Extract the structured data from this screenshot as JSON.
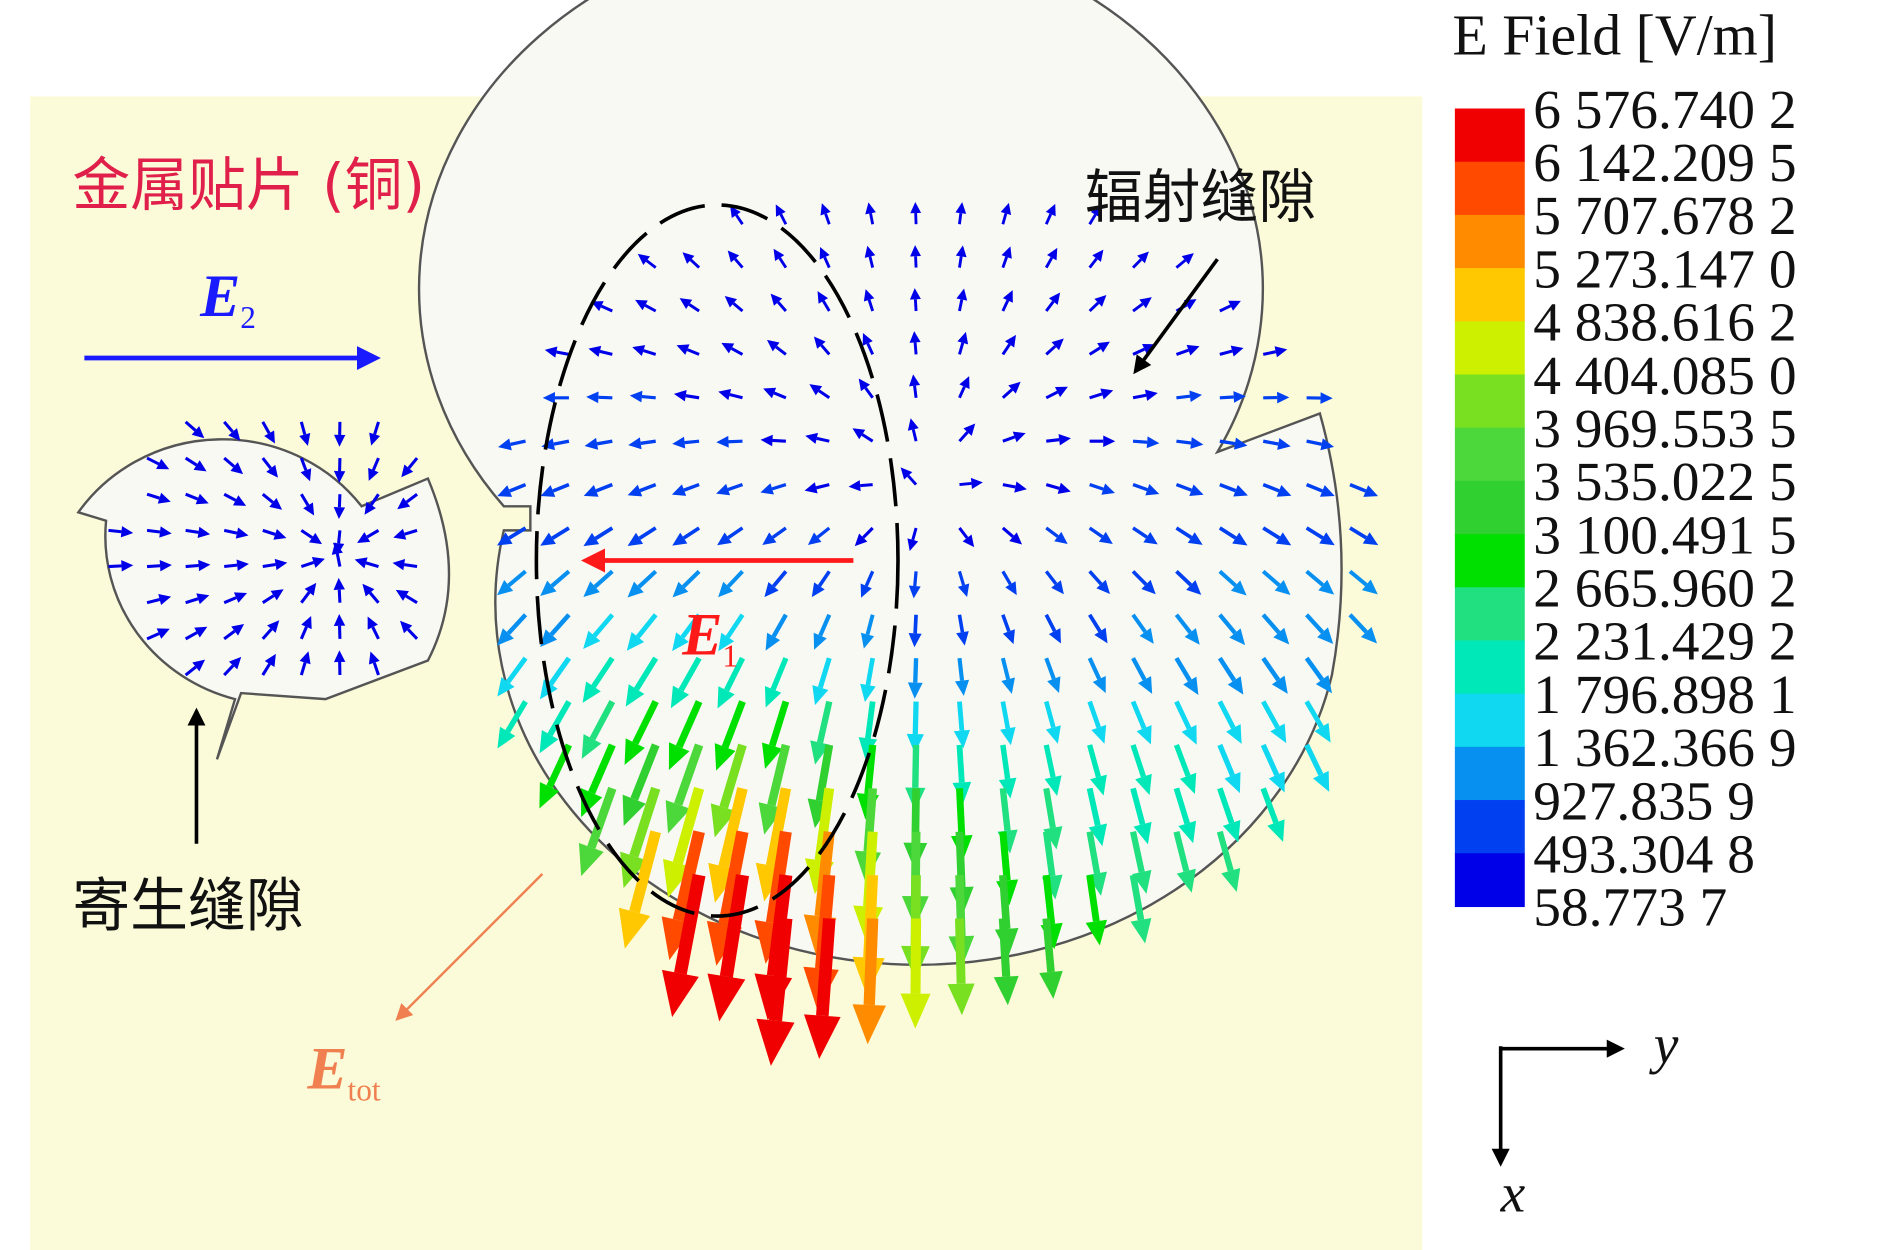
{
  "annotations": {
    "patch_label": "金属贴片 (铜)",
    "radiating_slot": "辐射缝隙",
    "parasitic_slot": "寄生缝隙"
  },
  "vectors": {
    "e2": {
      "symbol": "E",
      "subscript": "2"
    },
    "e1": {
      "symbol": "E",
      "subscript": "1"
    },
    "etot": {
      "symbol": "E",
      "subscript": "tot"
    }
  },
  "colorbar": {
    "title": "E Field [V/m]",
    "labels": [
      "6 576.740 2",
      "6 142.209 5",
      "5 707.678 2",
      "5 273.147 0",
      "4 838.616 2",
      "4 404.085 0",
      "3 969.553 5",
      "3 535.022 5",
      "3 100.491 5",
      "2 665.960 2",
      "2 231.429 2",
      "1 796.898 1",
      "1 362.366 9",
      "927.835 9",
      "493.304 8",
      "58.773 7"
    ],
    "colors": [
      "#f00000",
      "#ff4a00",
      "#ff8c00",
      "#ffc800",
      "#ccf000",
      "#78e020",
      "#4cd83a",
      "#30d030",
      "#00e000",
      "#20e080",
      "#00e8b8",
      "#10d8f0",
      "#0890f0",
      "#0040f0",
      "#0000e8"
    ]
  },
  "axes": {
    "y": "y",
    "x": "x"
  }
}
